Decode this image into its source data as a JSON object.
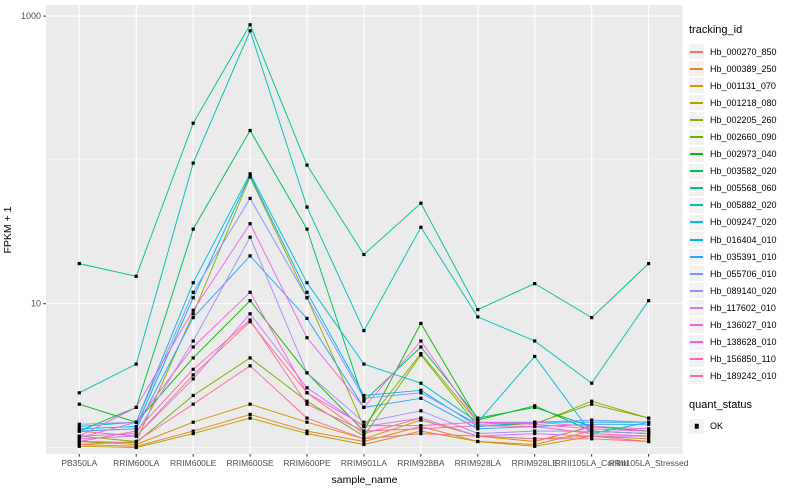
{
  "figure": {
    "panel_background": "#EBEBEB",
    "gridline_color": "#FFFFFF",
    "tick_label_color": "#4D4D4D",
    "point_color": "#000000"
  },
  "legend": {
    "tracking_title": "tracking_id",
    "quant_title": "quant_status",
    "quant_items": [
      {
        "label": "OK",
        "marker": "black-square"
      }
    ]
  },
  "chart_data": {
    "type": "line",
    "title": "",
    "xlabel": "sample_name",
    "ylabel": "FPKM + 1",
    "y_scale": "log10",
    "ylim": [
      0.9,
      1200
    ],
    "y_tick_labels": [
      "1000",
      "10"
    ],
    "y_major_breaks": [
      1000,
      10
    ],
    "y_minor_breaks": [
      100,
      1
    ],
    "grid": true,
    "legend_position": "right",
    "point_marker": "black-square",
    "categories": [
      "PB350LA",
      "RRIM600LA",
      "RRIM600LE",
      "RRIM600SE",
      "RRIM600PE",
      "RRIM901LA",
      "RRIM928BA",
      "RRIM928LA",
      "RRIM928LE",
      "RRII105LA_Control",
      "RRII105LA_Stressed"
    ],
    "series": [
      {
        "name": "Hb_000270_850",
        "color": "#F8766D",
        "values": [
          1.3,
          1.2,
          3.2,
          7.5,
          2.4,
          1.25,
          1.6,
          1.2,
          1.15,
          1.2,
          1.1
        ]
      },
      {
        "name": "Hb_000389_250",
        "color": "#E88526",
        "values": [
          1.05,
          1.02,
          1.3,
          1.7,
          1.3,
          1.1,
          1.4,
          1.1,
          1.05,
          1.3,
          1.25
        ]
      },
      {
        "name": "Hb_001131_070",
        "color": "#D49200",
        "values": [
          1.1,
          1.05,
          1.5,
          2.0,
          1.5,
          1.15,
          1.55,
          1.2,
          1.1,
          1.4,
          1.3
        ]
      },
      {
        "name": "Hb_001218_080",
        "color": "#BA9C00",
        "values": [
          1.02,
          1.0,
          1.25,
          1.6,
          1.25,
          1.05,
          1.3,
          1.1,
          1.02,
          1.2,
          1.15
        ]
      },
      {
        "name": "Hb_002205_260",
        "color": "#99A800",
        "values": [
          1.2,
          1.1,
          8.5,
          76.0,
          11.0,
          1.4,
          4.5,
          1.5,
          1.45,
          2.1,
          1.6
        ]
      },
      {
        "name": "Hb_002660_090",
        "color": "#6DB100",
        "values": [
          1.1,
          1.08,
          2.3,
          4.2,
          2.1,
          1.2,
          4.4,
          1.4,
          1.47,
          2.0,
          1.6
        ]
      },
      {
        "name": "Hb_002973_040",
        "color": "#0CB702",
        "values": [
          2.0,
          1.5,
          4.2,
          10.5,
          3.3,
          1.3,
          7.3,
          1.55,
          1.95,
          1.3,
          1.25
        ]
      },
      {
        "name": "Hb_003582_020",
        "color": "#00BC56",
        "values": [
          1.3,
          1.9,
          33.0,
          160.0,
          33.0,
          2.1,
          5.0,
          1.6,
          1.9,
          1.4,
          1.3
        ]
      },
      {
        "name": "Hb_005568_060",
        "color": "#00C092",
        "values": [
          19.0,
          15.5,
          180.0,
          870.0,
          92.0,
          22.0,
          50.0,
          9.1,
          13.8,
          8.0,
          19.0
        ]
      },
      {
        "name": "Hb_005882_020",
        "color": "#00C0B5",
        "values": [
          2.4,
          3.8,
          95.0,
          790.0,
          47.0,
          6.5,
          34.0,
          8.1,
          5.5,
          2.8,
          10.5
        ]
      },
      {
        "name": "Hb_009247_020",
        "color": "#00BDD4",
        "values": [
          1.4,
          1.5,
          14.0,
          80.0,
          14.0,
          3.8,
          2.8,
          1.5,
          4.3,
          1.25,
          1.5
        ]
      },
      {
        "name": "Hb_016404_010",
        "color": "#00B3F2",
        "values": [
          1.35,
          1.4,
          11.0,
          78.0,
          12.0,
          2.3,
          2.5,
          1.4,
          1.5,
          1.5,
          1.5
        ]
      },
      {
        "name": "Hb_035391_010",
        "color": "#29A3FF",
        "values": [
          1.3,
          1.35,
          8.0,
          21.5,
          7.9,
          1.9,
          2.2,
          1.35,
          1.4,
          1.45,
          1.45
        ]
      },
      {
        "name": "Hb_055706_010",
        "color": "#7E96FF",
        "values": [
          1.45,
          1.5,
          12.0,
          54.0,
          11.0,
          2.2,
          2.4,
          1.45,
          1.5,
          1.55,
          1.5
        ]
      },
      {
        "name": "Hb_089140_020",
        "color": "#A98CFF",
        "values": [
          1.2,
          1.25,
          5.5,
          29.0,
          3.3,
          1.5,
          1.8,
          1.25,
          1.3,
          1.3,
          1.25
        ]
      },
      {
        "name": "Hb_117602_010",
        "color": "#CD79FF",
        "values": [
          1.15,
          1.2,
          3.0,
          8.5,
          2.6,
          1.4,
          1.6,
          1.2,
          1.25,
          1.2,
          1.2
        ]
      },
      {
        "name": "Hb_136027_010",
        "color": "#EE66E8",
        "values": [
          1.2,
          1.9,
          9.0,
          36.0,
          5.8,
          1.9,
          5.5,
          1.5,
          1.5,
          1.4,
          1.35
        ]
      },
      {
        "name": "Hb_138628_010",
        "color": "#FB61D7",
        "values": [
          1.17,
          1.5,
          5.0,
          12.0,
          2.4,
          1.42,
          1.42,
          1.5,
          1.45,
          1.35,
          1.3
        ]
      },
      {
        "name": "Hb_156850_110",
        "color": "#FF64B8",
        "values": [
          1.1,
          1.3,
          3.5,
          7.7,
          2.0,
          1.3,
          1.35,
          1.42,
          1.4,
          1.25,
          1.2
        ]
      },
      {
        "name": "Hb_189242_010",
        "color": "#FF6B94",
        "values": [
          1.05,
          1.1,
          2.0,
          3.7,
          1.6,
          1.15,
          1.25,
          1.2,
          1.15,
          1.15,
          1.1
        ]
      }
    ]
  }
}
